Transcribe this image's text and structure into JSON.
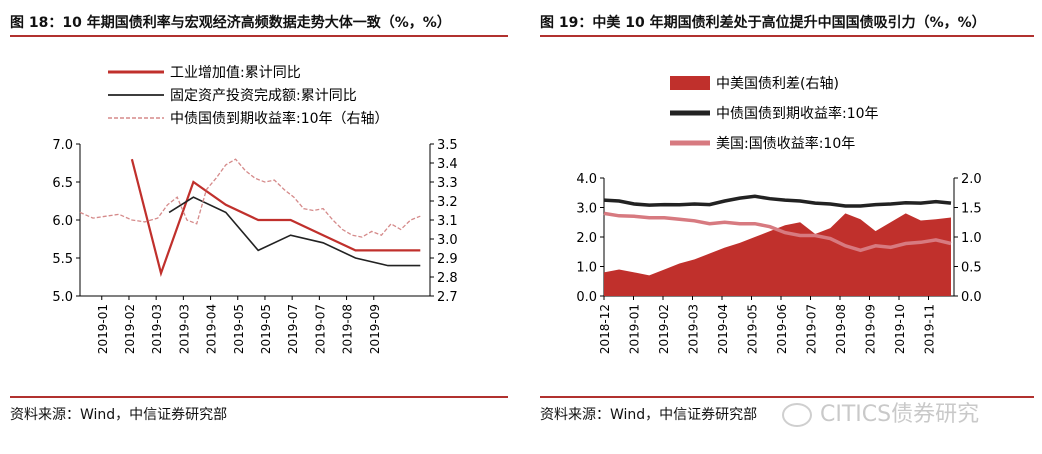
{
  "fig18": {
    "title": "图 18：10 年期国债利率与宏观经济高频数据走势大体一致（%，%）",
    "source": "资料来源：Wind，中信证券研究部"
  },
  "fig19": {
    "title": "图 19：中美 10 年期国债利差处于高位提升中国国债吸引力（%，%）",
    "source": "资料来源：Wind，中信证券研究部"
  },
  "watermark": {
    "text": "CITICS债券研究",
    "icon": "wechat-icon"
  },
  "chart_data": [
    {
      "type": "line",
      "title": "图 18：10 年期国债利率与宏观经济高频数据走势大体一致（%，%）",
      "x_tick_labels": [
        "2019-01",
        "2019-02",
        "2019-03",
        "2019-03",
        "2019-04",
        "2019-05",
        "2019-05",
        "2019-07",
        "2019-07",
        "2019-08",
        "2019-09"
      ],
      "y_left": {
        "ticks": [
          "5.0",
          "5.5",
          "6.0",
          "6.5",
          "7.0"
        ],
        "range": [
          5.0,
          7.0
        ]
      },
      "y_right": {
        "ticks": [
          "2.7",
          "2.8",
          "2.9",
          "3.0",
          "3.1",
          "3.2",
          "3.3",
          "3.4",
          "3.5"
        ],
        "range": [
          2.7,
          3.5
        ]
      },
      "legend_placement": "top-left",
      "grid": false,
      "series": [
        {
          "name": "工业增加值:累计同比",
          "axis": "left",
          "color": "#c0302c",
          "style": "solid",
          "x": [
            1.6,
            2.5,
            3.5,
            4.5,
            5.5,
            6.5,
            7.5,
            8.5,
            9.5,
            10.5
          ],
          "values": [
            6.8,
            5.3,
            6.5,
            6.2,
            6.0,
            6.0,
            5.8,
            5.6,
            5.6,
            5.6
          ]
        },
        {
          "name": "固定资产投资完成额:累计同比",
          "axis": "left",
          "color": "#222222",
          "style": "solid",
          "x": [
            2.75,
            3.5,
            4.5,
            5.5,
            6.5,
            7.5,
            8.5,
            9.5,
            10.5
          ],
          "values": [
            6.1,
            6.3,
            6.1,
            5.6,
            5.8,
            5.7,
            5.5,
            5.4,
            5.4
          ]
        },
        {
          "name": "中债国债到期收益率:10年（右轴）",
          "axis": "right",
          "color": "#d58a8a",
          "style": "dashed",
          "x": [
            0.0,
            0.4,
            0.8,
            1.2,
            1.6,
            2.0,
            2.4,
            2.7,
            3.0,
            3.3,
            3.6,
            3.9,
            4.2,
            4.5,
            4.8,
            5.1,
            5.4,
            5.7,
            6.0,
            6.3,
            6.6,
            6.9,
            7.2,
            7.5,
            7.8,
            8.1,
            8.4,
            8.7,
            9.0,
            9.3,
            9.6,
            9.9,
            10.2,
            10.5
          ],
          "values": [
            3.14,
            3.11,
            3.12,
            3.13,
            3.1,
            3.09,
            3.11,
            3.18,
            3.22,
            3.1,
            3.08,
            3.26,
            3.32,
            3.39,
            3.42,
            3.36,
            3.32,
            3.3,
            3.31,
            3.26,
            3.22,
            3.16,
            3.15,
            3.16,
            3.1,
            3.05,
            3.02,
            3.01,
            3.04,
            3.02,
            3.08,
            3.05,
            3.1,
            3.12
          ]
        }
      ]
    },
    {
      "type": "area",
      "title": "图 19：中美 10 年期国债利差处于高位提升中国国债吸引力（%，%）",
      "x_tick_labels": [
        "2018-12",
        "2019-01",
        "2019-02",
        "2019-03",
        "2019-04",
        "2019-05",
        "2019-06",
        "2019-07",
        "2019-08",
        "2019-09",
        "2019-10",
        "2019-11"
      ],
      "y_left": {
        "ticks": [
          "0.0",
          "1.0",
          "2.0",
          "3.0",
          "4.0"
        ],
        "range": [
          0.0,
          4.0
        ]
      },
      "y_right": {
        "ticks": [
          "0.0",
          "0.5",
          "1.0",
          "1.5",
          "2.0"
        ],
        "range": [
          0.0,
          2.0
        ]
      },
      "legend_placement": "top-left",
      "grid": false,
      "series": [
        {
          "name": "中美国债利差(右轴)",
          "axis": "right",
          "color": "#c0302c",
          "kind": "area",
          "x": [
            0,
            0.5,
            1,
            1.5,
            2,
            2.5,
            3,
            3.5,
            4,
            4.5,
            5,
            5.5,
            6,
            6.5,
            7,
            7.5,
            8,
            8.5,
            9,
            9.5,
            10,
            10.5,
            11,
            11.5
          ],
          "values": [
            0.4,
            0.45,
            0.4,
            0.35,
            0.45,
            0.55,
            0.62,
            0.72,
            0.82,
            0.9,
            1.0,
            1.1,
            1.2,
            1.25,
            1.05,
            1.15,
            1.4,
            1.3,
            1.1,
            1.25,
            1.4,
            1.28,
            1.3,
            1.33
          ]
        },
        {
          "name": "中债国债到期收益率:10年",
          "axis": "left",
          "color": "#222222",
          "kind": "line",
          "x": [
            0,
            0.5,
            1,
            1.5,
            2,
            2.5,
            3,
            3.5,
            4,
            4.5,
            5,
            5.5,
            6,
            6.5,
            7,
            7.5,
            8,
            8.5,
            9,
            9.5,
            10,
            10.5,
            11,
            11.5
          ],
          "values": [
            3.25,
            3.22,
            3.12,
            3.08,
            3.1,
            3.09,
            3.12,
            3.1,
            3.22,
            3.32,
            3.38,
            3.3,
            3.25,
            3.22,
            3.15,
            3.12,
            3.05,
            3.05,
            3.1,
            3.12,
            3.16,
            3.15,
            3.2,
            3.15
          ]
        },
        {
          "name": "美国:国债收益率:10年",
          "axis": "left",
          "color": "#d77a80",
          "kind": "line",
          "x": [
            0,
            0.5,
            1,
            1.5,
            2,
            2.5,
            3,
            3.5,
            4,
            4.5,
            5,
            5.5,
            6,
            6.5,
            7,
            7.5,
            8,
            8.5,
            9,
            9.5,
            10,
            10.5,
            11,
            11.5
          ],
          "values": [
            2.8,
            2.72,
            2.7,
            2.65,
            2.65,
            2.6,
            2.55,
            2.45,
            2.5,
            2.45,
            2.45,
            2.35,
            2.15,
            2.05,
            2.05,
            1.95,
            1.7,
            1.55,
            1.7,
            1.65,
            1.78,
            1.82,
            1.9,
            1.78
          ]
        }
      ]
    }
  ]
}
